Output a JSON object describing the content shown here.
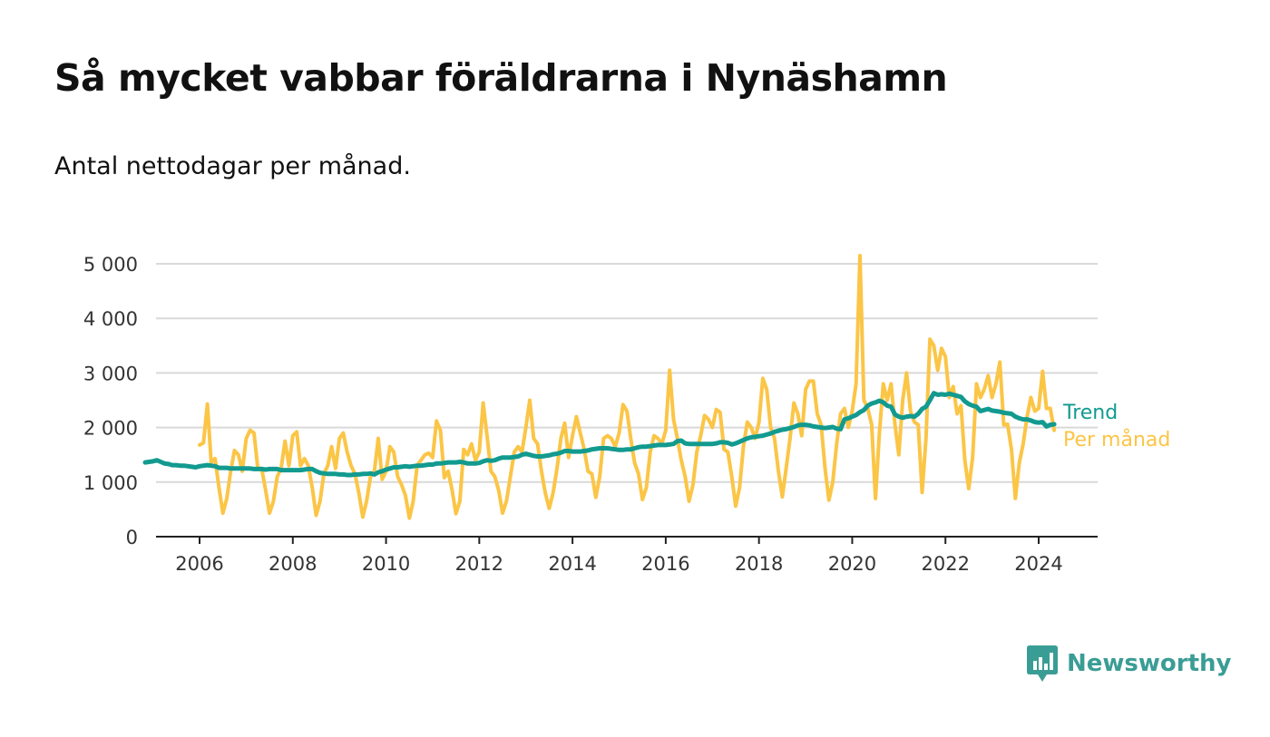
{
  "title": "Så mycket vabbar föräldrarna i Nynäshamn",
  "subtitle": "Antal nettodagar per månad.",
  "brand": {
    "name": "Newsworthy",
    "color": "#3a9d95",
    "icon": "newsworthy-logo-icon"
  },
  "chart_data": {
    "type": "line",
    "x_start": "2006-01",
    "xticks": [
      "2006",
      "2008",
      "2010",
      "2012",
      "2014",
      "2016",
      "2018",
      "2020",
      "2022",
      "2024"
    ],
    "yticks": [
      "0",
      "1 000",
      "2 000",
      "3 000",
      "4 000",
      "5 000"
    ],
    "ylim": [
      0,
      5000
    ],
    "grid": true,
    "series": [
      {
        "name": "Per månad",
        "color": "#fbc546",
        "values": [
          1680,
          1720,
          2430,
          1360,
          1430,
          900,
          430,
          700,
          1200,
          1580,
          1500,
          1200,
          1800,
          1950,
          1900,
          1250,
          1250,
          850,
          430,
          650,
          1100,
          1250,
          1750,
          1300,
          1850,
          1920,
          1300,
          1430,
          1300,
          900,
          390,
          650,
          1150,
          1300,
          1650,
          1250,
          1800,
          1900,
          1550,
          1300,
          1150,
          800,
          360,
          650,
          1100,
          1200,
          1800,
          1050,
          1200,
          1650,
          1550,
          1100,
          950,
          750,
          340,
          650,
          1300,
          1400,
          1500,
          1530,
          1450,
          2120,
          1950,
          1080,
          1200,
          850,
          420,
          650,
          1600,
          1500,
          1700,
          1400,
          1550,
          2450,
          1850,
          1200,
          1100,
          850,
          430,
          650,
          1100,
          1550,
          1650,
          1550,
          2000,
          2500,
          1800,
          1700,
          1200,
          800,
          520,
          800,
          1250,
          1800,
          2080,
          1450,
          1850,
          2200,
          1900,
          1600,
          1200,
          1150,
          720,
          1100,
          1800,
          1850,
          1800,
          1650,
          1900,
          2420,
          2300,
          1800,
          1350,
          1150,
          680,
          900,
          1550,
          1850,
          1800,
          1700,
          1950,
          3050,
          2150,
          1800,
          1400,
          1100,
          650,
          950,
          1550,
          1850,
          2220,
          2150,
          2000,
          2330,
          2280,
          1600,
          1550,
          1100,
          560,
          900,
          1650,
          2100,
          2000,
          1800,
          2100,
          2900,
          2700,
          2000,
          1800,
          1200,
          730,
          1250,
          1800,
          2450,
          2250,
          1850,
          2700,
          2850,
          2850,
          2250,
          2050,
          1250,
          670,
          1000,
          1700,
          2250,
          2350,
          2000,
          2300,
          2800,
          5150,
          2500,
          2350,
          2050,
          700,
          1900,
          2800,
          2500,
          2800,
          2050,
          1500,
          2500,
          3000,
          2300,
          2100,
          2050,
          810,
          1800,
          3620,
          3500,
          3050,
          3450,
          3300,
          2550,
          2750,
          2250,
          2400,
          1400,
          880,
          1450,
          2800,
          2550,
          2700,
          2950,
          2550,
          2800,
          3200,
          2050,
          2060,
          1600,
          700,
          1350,
          1700,
          2200,
          2550,
          2300,
          2350,
          3030,
          2350,
          2350,
          1950
        ]
      },
      {
        "name": "Trend",
        "color": "#129a8f",
        "values": [
          1360,
          1370,
          1380,
          1400,
          1370,
          1340,
          1330,
          1310,
          1310,
          1300,
          1300,
          1290,
          1280,
          1270,
          1290,
          1300,
          1310,
          1300,
          1290,
          1260,
          1260,
          1260,
          1250,
          1250,
          1250,
          1250,
          1250,
          1250,
          1240,
          1240,
          1240,
          1230,
          1240,
          1240,
          1240,
          1220,
          1220,
          1220,
          1220,
          1220,
          1220,
          1230,
          1240,
          1240,
          1200,
          1170,
          1160,
          1150,
          1150,
          1150,
          1140,
          1140,
          1130,
          1130,
          1140,
          1140,
          1150,
          1150,
          1160,
          1140,
          1180,
          1200,
          1230,
          1250,
          1270,
          1270,
          1280,
          1290,
          1280,
          1290,
          1300,
          1300,
          1310,
          1320,
          1320,
          1340,
          1340,
          1350,
          1360,
          1360,
          1360,
          1370,
          1360,
          1340,
          1340,
          1340,
          1350,
          1380,
          1400,
          1390,
          1400,
          1430,
          1450,
          1450,
          1450,
          1460,
          1470,
          1500,
          1520,
          1500,
          1480,
          1470,
          1470,
          1480,
          1490,
          1510,
          1520,
          1540,
          1570,
          1570,
          1560,
          1560,
          1560,
          1570,
          1580,
          1600,
          1610,
          1620,
          1620,
          1620,
          1610,
          1600,
          1590,
          1590,
          1600,
          1600,
          1620,
          1640,
          1650,
          1650,
          1660,
          1670,
          1680,
          1680,
          1680,
          1690,
          1700,
          1750,
          1760,
          1710,
          1700,
          1700,
          1700,
          1700,
          1700,
          1700,
          1700,
          1710,
          1730,
          1730,
          1720,
          1690,
          1710,
          1740,
          1770,
          1800,
          1820,
          1830,
          1840,
          1850,
          1870,
          1890,
          1920,
          1940,
          1960,
          1970,
          1990,
          2010,
          2040,
          2050,
          2050,
          2040,
          2020,
          2010,
          2000,
          1990,
          2000,
          2010,
          1980,
          1970,
          2150,
          2170,
          2200,
          2230,
          2280,
          2320,
          2400,
          2440,
          2460,
          2490,
          2460,
          2400,
          2380,
          2240,
          2200,
          2180,
          2200,
          2210,
          2200,
          2250,
          2340,
          2380,
          2500,
          2630,
          2600,
          2610,
          2600,
          2620,
          2600,
          2580,
          2560,
          2480,
          2430,
          2400,
          2380,
          2300,
          2320,
          2340,
          2310,
          2300,
          2290,
          2270,
          2260,
          2250,
          2200,
          2170,
          2150,
          2150,
          2130,
          2100,
          2090,
          2100,
          2020,
          2050,
          2060
        ]
      }
    ]
  }
}
